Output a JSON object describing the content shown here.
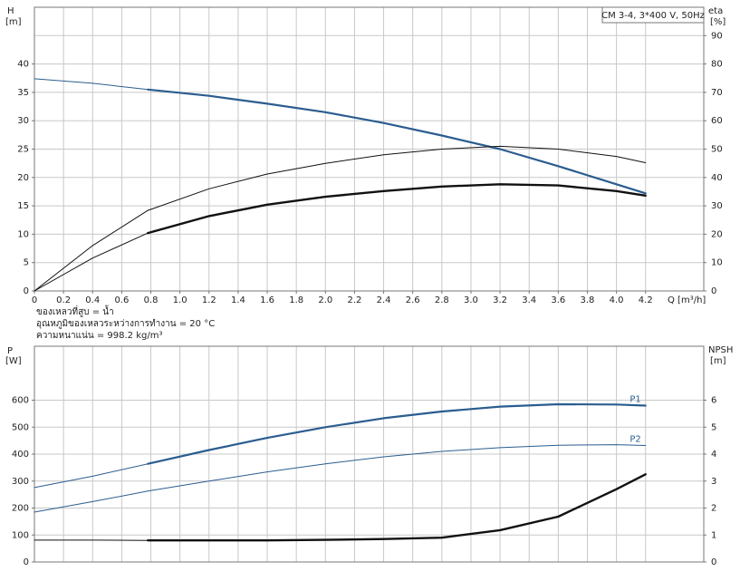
{
  "chart_data": [
    {
      "type": "line",
      "box_label": "CM 3-4, 3*400 V, 50Hz",
      "ylabel": "H",
      "yunit": "[m]",
      "y2label": "eta",
      "y2unit": "[%]",
      "xlabel": "Q [m³/h]",
      "annotations": [
        "ของเหลวที่สูบ = น้ำ",
        "อุณหภูมิของเหลวระหว่างการทำงาน = 20 °C",
        "ความหนาแน่น = 998.2 kg/m³"
      ],
      "x": [
        0,
        0.4,
        0.78,
        1.2,
        1.6,
        2.0,
        2.4,
        2.8,
        3.2,
        3.6,
        4.0,
        4.2
      ],
      "xlim": [
        0,
        4.6
      ],
      "xticks": [
        0,
        0.2,
        0.4,
        0.6,
        0.8,
        {
          "value": 1,
          "label": "1.0"
        },
        1.2,
        1.4,
        1.6,
        1.8,
        {
          "value": 2,
          "label": "2.0"
        },
        2.2,
        2.4,
        2.6,
        2.8,
        {
          "value": 3,
          "label": "3.0"
        },
        3.2,
        3.4,
        3.6,
        3.8,
        {
          "value": 4,
          "label": "4.0"
        },
        4.2
      ],
      "ylim": [
        0,
        50
      ],
      "yticks": [
        0,
        5,
        10,
        15,
        20,
        25,
        30,
        35,
        40
      ],
      "y2lim": [
        0,
        100
      ],
      "y2ticks": [
        0,
        10,
        20,
        30,
        40,
        50,
        60,
        70,
        80,
        90
      ],
      "grid": true,
      "series": [
        {
          "color": "#2b5d8f",
          "width": 1,
          "values": [
            37.4,
            36.6,
            35.5,
            null,
            null,
            null,
            null,
            null,
            null,
            null,
            null,
            null
          ]
        },
        {
          "color": "#2b5d8f",
          "width": 2.2,
          "values": [
            null,
            null,
            35.5,
            34.4,
            33.0,
            31.5,
            29.6,
            27.4,
            25.0,
            22.0,
            18.8,
            17.2
          ]
        },
        {
          "color": "#111111",
          "width": 1,
          "axis": "y2",
          "values": [
            0,
            16,
            28.4,
            36,
            41.2,
            45,
            48,
            50,
            51,
            50,
            47.4,
            45.2
          ]
        },
        {
          "color": "#111111",
          "width": 1,
          "axis": "y2",
          "values": [
            0,
            11.6,
            20.4,
            null,
            null,
            null,
            null,
            null,
            null,
            null,
            null,
            null
          ]
        },
        {
          "color": "#111111",
          "width": 2.4,
          "axis": "y2",
          "values": [
            null,
            null,
            20.4,
            26.4,
            30.4,
            33.2,
            35.2,
            36.8,
            37.6,
            37.2,
            35.2,
            33.6
          ]
        }
      ]
    },
    {
      "type": "line",
      "ylabel": "P",
      "yunit": "[W]",
      "y2label": "NPSH",
      "y2unit": "[m]",
      "x": [
        0,
        0.4,
        0.78,
        1.2,
        1.6,
        2.0,
        2.4,
        2.8,
        3.2,
        3.6,
        4.0,
        4.2
      ],
      "xlim": [
        0,
        4.6
      ],
      "xgrid": [
        0,
        0.2,
        0.4,
        0.6,
        0.8,
        1,
        1.2,
        1.4,
        1.6,
        1.8,
        2,
        2.2,
        2.4,
        2.6,
        2.8,
        3,
        3.2,
        3.4,
        3.6,
        3.8,
        4,
        4.2
      ],
      "ylim": [
        0,
        800
      ],
      "yticks": [
        0,
        100,
        200,
        300,
        400,
        500,
        600
      ],
      "y2lim": [
        0,
        8
      ],
      "y2ticks": [
        0,
        1,
        2,
        3,
        4,
        5,
        6
      ],
      "grid": true,
      "series": [
        {
          "color": "#2b5d8f",
          "width": 1,
          "values": [
            276,
            318,
            364,
            null,
            null,
            null,
            null,
            null,
            null,
            null,
            null,
            null
          ]
        },
        {
          "name": "P1",
          "color": "#2b5d8f",
          "width": 2.2,
          "values": [
            null,
            null,
            364,
            415,
            460,
            500,
            533,
            558,
            576,
            585,
            584,
            580
          ]
        },
        {
          "name": "P2",
          "color": "#2b5d8f",
          "width": 1,
          "values": [
            185,
            224,
            263,
            300,
            334,
            364,
            390,
            410,
            424,
            433,
            435,
            432
          ]
        },
        {
          "color": "#111111",
          "width": 1,
          "axis": "y2",
          "values": [
            0.81,
            0.81,
            0.8,
            null,
            null,
            null,
            null,
            null,
            null,
            null,
            null,
            null
          ]
        },
        {
          "color": "#111111",
          "width": 2.4,
          "axis": "y2",
          "values": [
            null,
            null,
            0.8,
            0.8,
            0.8,
            0.82,
            0.85,
            0.9,
            1.18,
            1.68,
            2.7,
            3.25
          ]
        }
      ]
    }
  ]
}
